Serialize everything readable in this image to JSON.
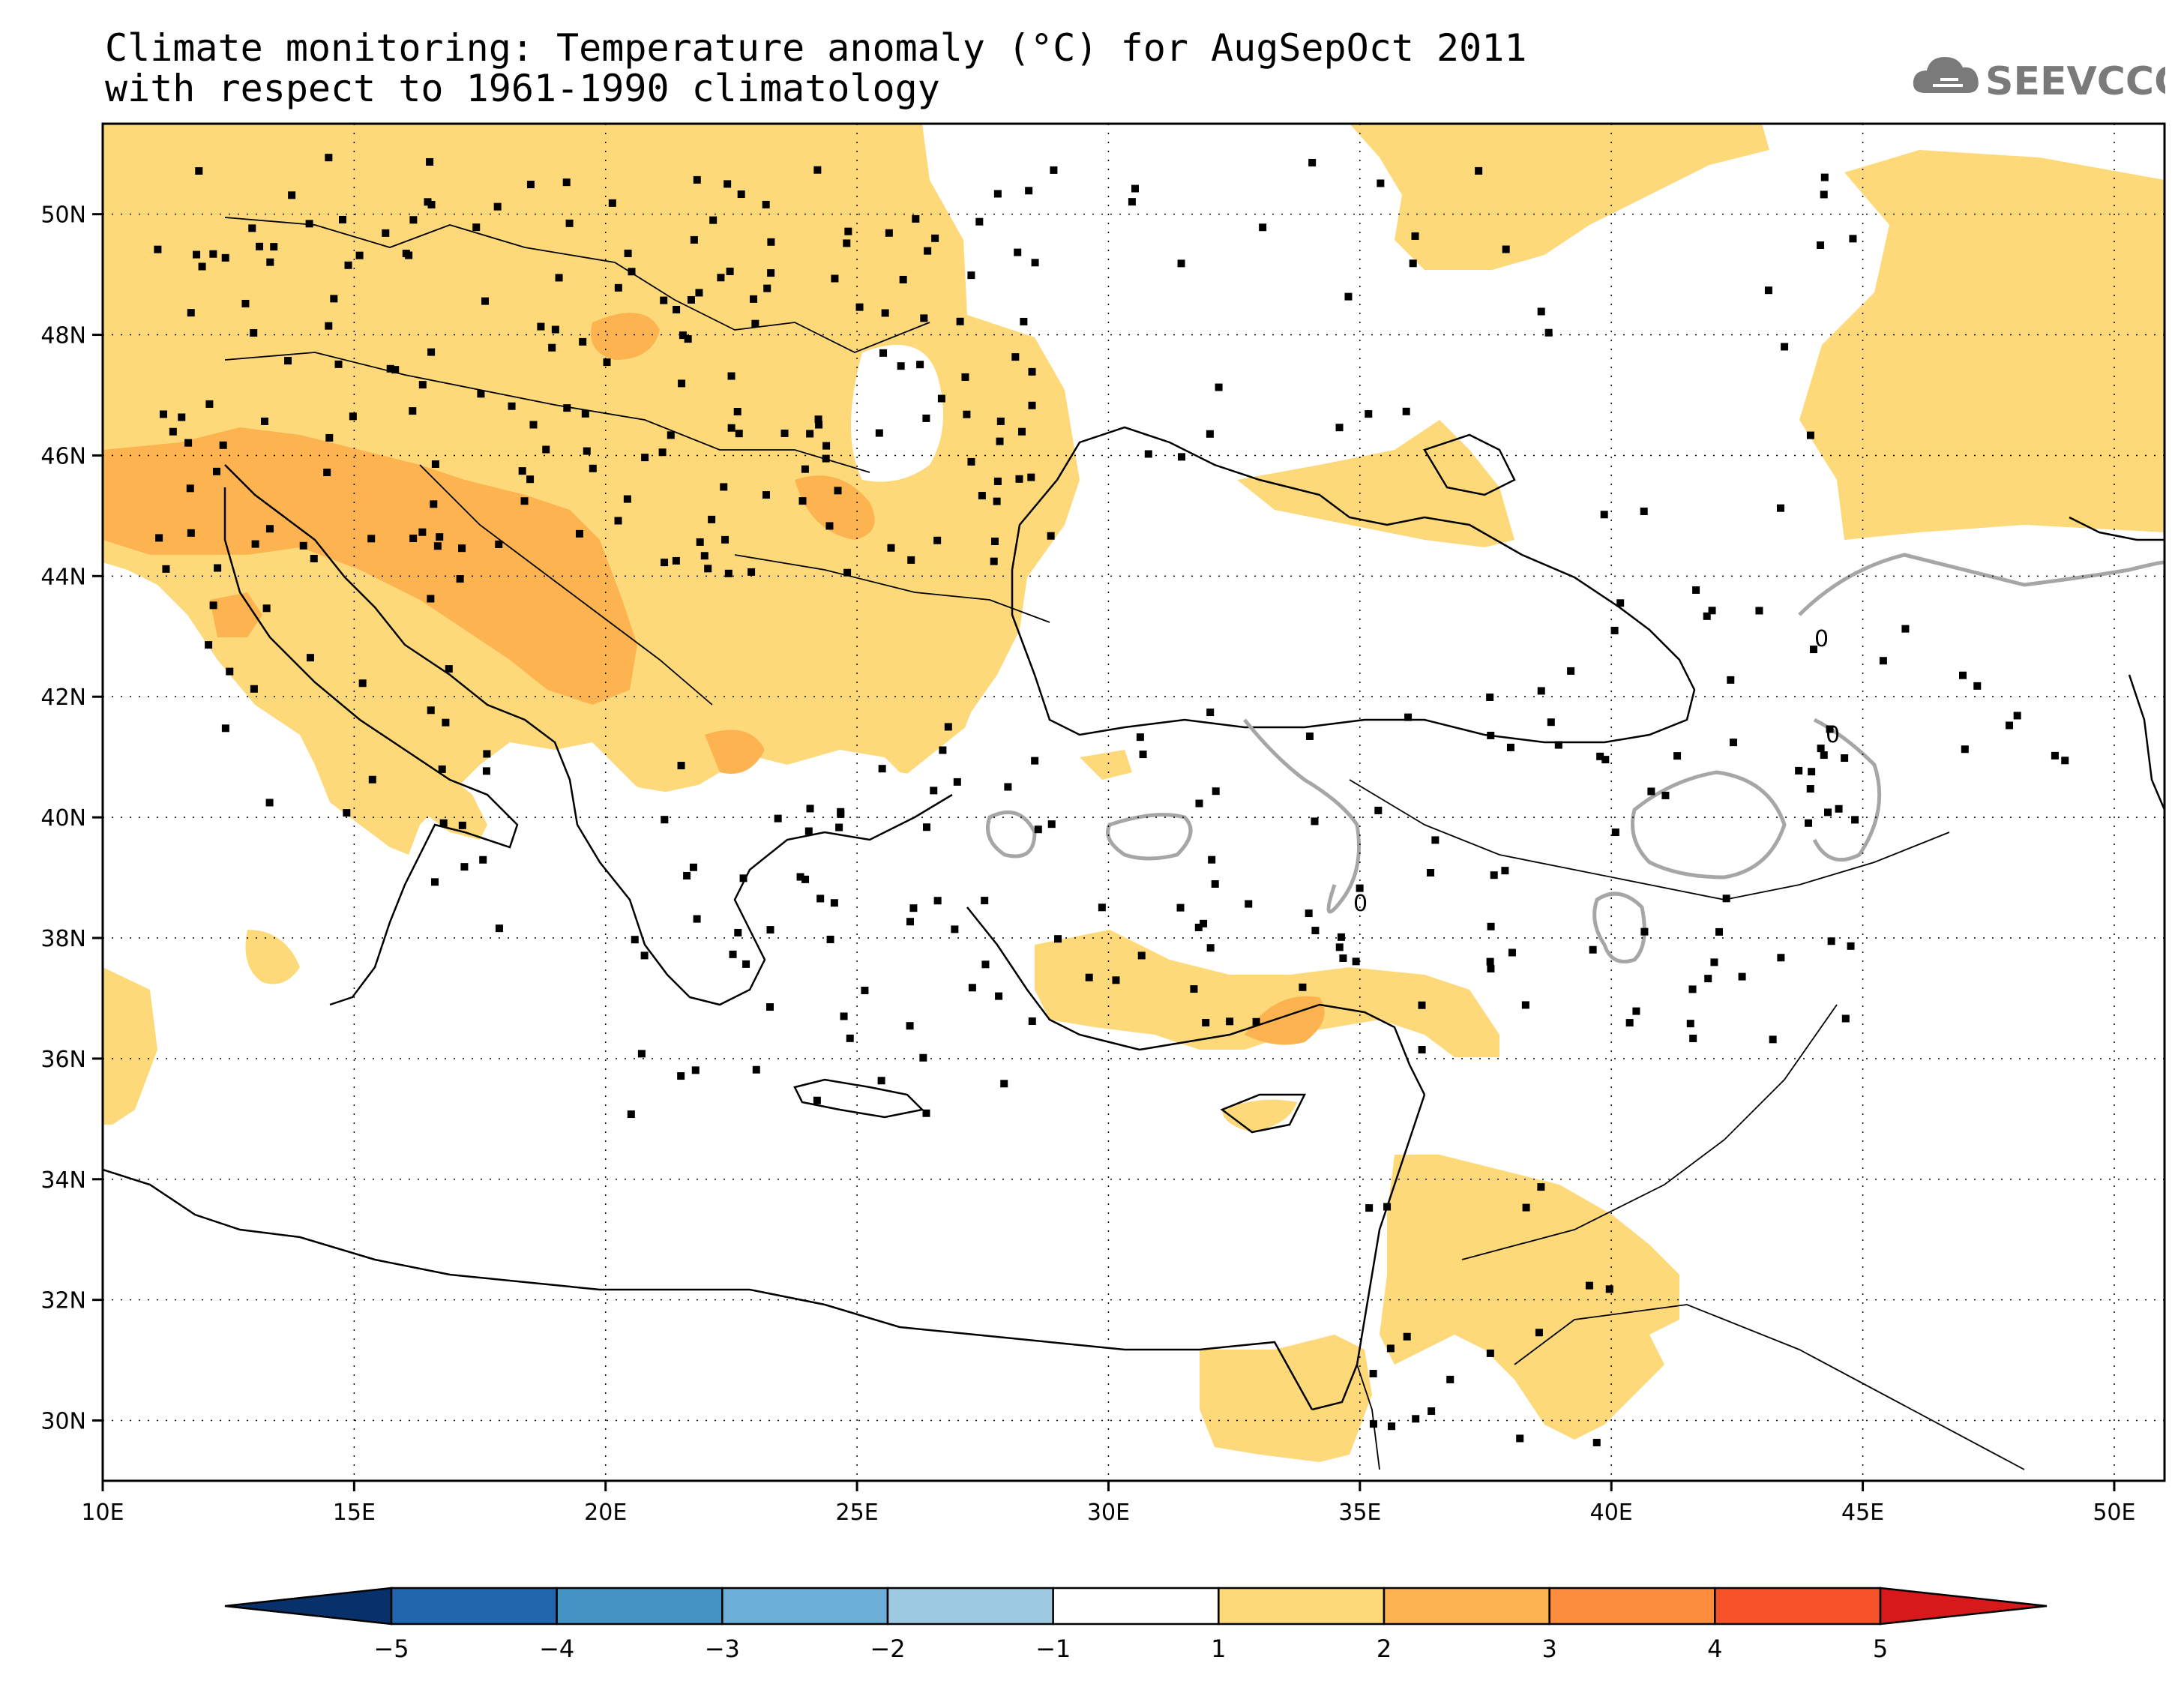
{
  "title": {
    "line1": "Climate monitoring: Temperature anomaly (°C) for AugSepOct 2011",
    "line2": "with respect to 1961-1990 climatology"
  },
  "logo": {
    "text": "SEEVCCC",
    "icon": "cloud-icon",
    "color": "#777777"
  },
  "map": {
    "lon_range": [
      10,
      51
    ],
    "lat_range": [
      29,
      51.5
    ],
    "lon_ticks": [
      10,
      15,
      20,
      25,
      30,
      35,
      40,
      45,
      50
    ],
    "lat_ticks": [
      30,
      32,
      34,
      36,
      38,
      40,
      42,
      44,
      46,
      48,
      50
    ],
    "lon_labels": [
      "10E",
      "15E",
      "20E",
      "25E",
      "30E",
      "35E",
      "40E",
      "45E",
      "50E"
    ],
    "lat_labels": [
      "30N",
      "32N",
      "34N",
      "36N",
      "38N",
      "40N",
      "42N",
      "44N",
      "46N",
      "48N",
      "50N"
    ],
    "grid": "dotted",
    "zero_contour_label": "0",
    "zero_contour_color": "#a6a6a6"
  },
  "legend": {
    "boundaries": [
      "-5",
      "-4",
      "-3",
      "-2",
      "-1",
      "1",
      "2",
      "3",
      "4",
      "5"
    ],
    "colors": [
      "#08306b",
      "#2166ac",
      "#4393c3",
      "#6baed6",
      "#9ecae1",
      "#ffffff",
      "#fdd97a",
      "#fdb350",
      "#fc8d3c",
      "#f5522a",
      "#d7191c"
    ],
    "extends": "both"
  }
}
